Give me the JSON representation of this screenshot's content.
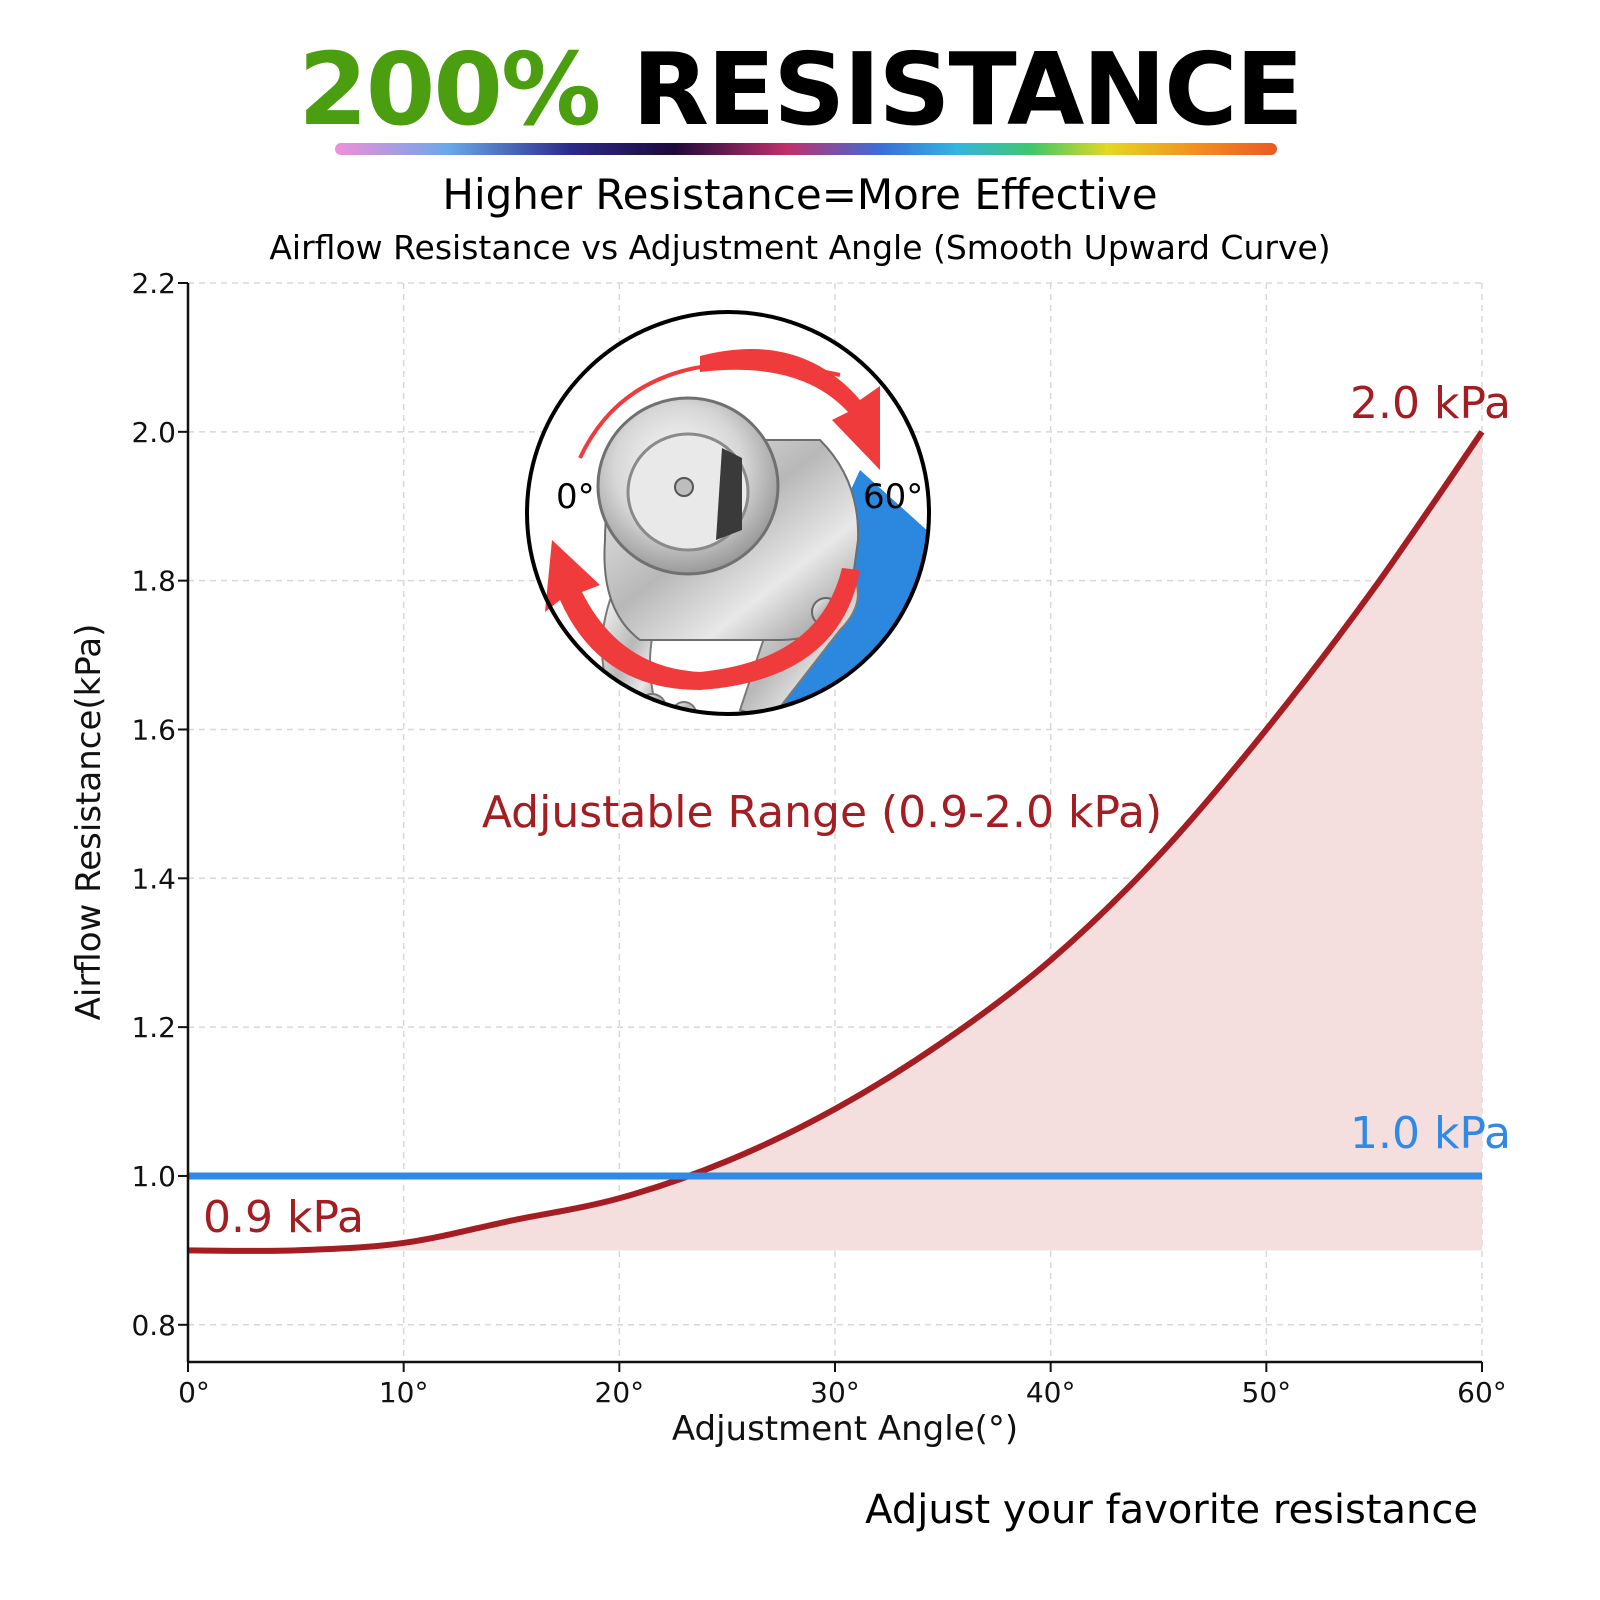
{
  "header": {
    "accent_text": "200%",
    "main_text": "RESISTANCE",
    "accent_color": "#4a9e0f",
    "subtitle": "Higher Resistance=More Effective"
  },
  "footer": {
    "note": "Adjust your favorite resistance"
  },
  "chart_data": {
    "type": "line",
    "title": "Airflow Resistance vs Adjustment Angle (Smooth Upward Curve)",
    "xlabel": "Adjustment Angle(°)",
    "ylabel": "Airflow Resistance(kPa)",
    "xlim": [
      0,
      60
    ],
    "ylim": [
      0.75,
      2.2
    ],
    "x_ticks": [
      0,
      10,
      20,
      30,
      40,
      50,
      60
    ],
    "x_tick_labels": [
      "0°",
      "10°",
      "20°",
      "30°",
      "40°",
      "50°",
      "60°"
    ],
    "y_ticks": [
      0.8,
      1.0,
      1.2,
      1.4,
      1.6,
      1.8,
      2.0,
      2.2
    ],
    "y_tick_labels": [
      "0.8",
      "1.0",
      "1.2",
      "1.4",
      "1.6",
      "1.8",
      "2.0",
      "2.2"
    ],
    "grid": true,
    "series": [
      {
        "color": "#a31d22",
        "fill_color": "#f4dede",
        "fill_baseline": 0.9,
        "x": [
          0,
          5,
          10,
          15,
          20,
          25,
          30,
          35,
          40,
          45,
          50,
          55,
          60
        ],
        "y": [
          0.9,
          0.9,
          0.91,
          0.94,
          0.97,
          1.02,
          1.09,
          1.18,
          1.29,
          1.43,
          1.6,
          1.79,
          2.0
        ]
      },
      {
        "color": "#2e8ae6",
        "x": [
          0,
          60
        ],
        "y": [
          1.0,
          1.0
        ]
      }
    ],
    "annotations": {
      "range_label": "Adjustable Range (0.9-2.0 kPa)",
      "start_label": "0.9 kPa",
      "end_label": "2.0 kPa",
      "baseline_label": "1.0 kPa"
    },
    "inset": {
      "start_angle_label": "0°",
      "end_angle_label": "60°",
      "arrow_color": "#ef3b3b",
      "accent_color": "#2b88de"
    }
  }
}
